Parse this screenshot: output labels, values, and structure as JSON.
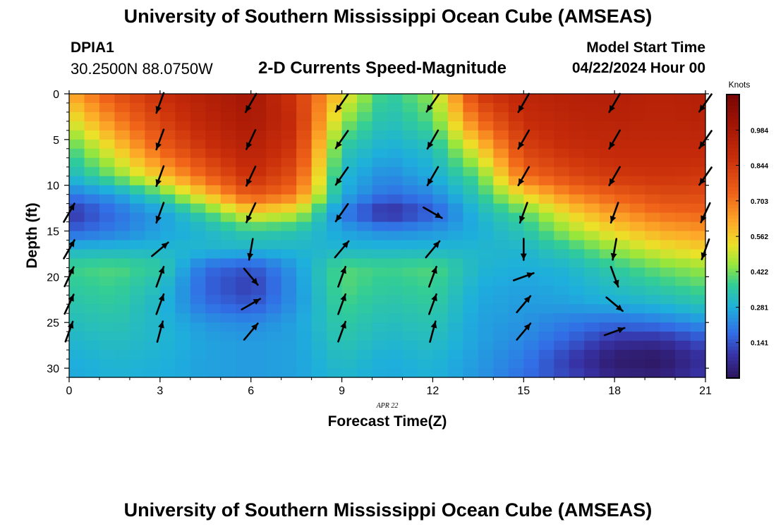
{
  "header": {
    "title": "University of Southern Mississippi Ocean Cube (AMSEAS)",
    "station_id": "DPIA1",
    "station_coords": "30.2500N  88.0750W",
    "subtitle": "2-D Currents Speed-Magnitude",
    "model_label": "Model Start Time",
    "model_time": "04/22/2024 Hour 00"
  },
  "footer": {
    "title": "University of Southern Mississippi Ocean Cube (AMSEAS)"
  },
  "chart_data": {
    "type": "heatmap",
    "xlabel": "Forecast Time(Z)",
    "ylabel": "Depth (ft)",
    "date_label": "APR 22",
    "colorbar_label": "Knots",
    "colorbar_ticks": [
      "0.984",
      "0.844",
      "0.703",
      "0.562",
      "0.422",
      "0.281",
      "0.141"
    ],
    "colorbar_tick_values": [
      0.984,
      0.844,
      0.703,
      0.562,
      0.422,
      0.281,
      0.141
    ],
    "colorbar_range": [
      0.0,
      1.125
    ],
    "x_ticks": [
      0,
      3,
      6,
      9,
      12,
      15,
      18,
      21
    ],
    "y_ticks": [
      0,
      5,
      10,
      15,
      20,
      25,
      30
    ],
    "xlim": [
      0,
      21
    ],
    "ylim": [
      0,
      31
    ],
    "y_inverted": true,
    "arrow_x": [
      0,
      3,
      6,
      9,
      12,
      15,
      18,
      21
    ],
    "arrow_depths": [
      1,
      5,
      9,
      13,
      17,
      20,
      23,
      26
    ],
    "arrow_dirs_deg": [
      [
        225,
        200,
        210,
        215,
        215,
        210,
        210,
        215
      ],
      [
        210,
        200,
        205,
        215,
        210,
        210,
        210,
        215
      ],
      [
        210,
        200,
        205,
        215,
        210,
        210,
        210,
        215
      ],
      [
        30,
        200,
        205,
        215,
        120,
        200,
        200,
        205
      ],
      [
        30,
        50,
        190,
        40,
        40,
        180,
        190,
        200
      ],
      [
        25,
        20,
        140,
        20,
        20,
        70,
        160,
        0
      ],
      [
        25,
        20,
        60,
        20,
        20,
        40,
        130,
        0
      ],
      [
        20,
        15,
        40,
        20,
        15,
        40,
        70,
        0
      ]
    ],
    "arrow_show": [
      [
        0,
        1,
        1,
        1,
        1,
        1,
        1,
        1
      ],
      [
        0,
        1,
        1,
        1,
        1,
        1,
        1,
        1
      ],
      [
        0,
        1,
        1,
        1,
        1,
        1,
        1,
        1
      ],
      [
        1,
        1,
        1,
        1,
        1,
        1,
        1,
        1
      ],
      [
        1,
        1,
        1,
        1,
        1,
        1,
        1,
        1
      ],
      [
        1,
        1,
        1,
        1,
        1,
        1,
        1,
        0
      ],
      [
        1,
        1,
        1,
        1,
        1,
        1,
        1,
        0
      ],
      [
        1,
        1,
        1,
        1,
        1,
        1,
        1,
        0
      ]
    ],
    "speed_depths": [
      0,
      3,
      6,
      9,
      11,
      13,
      15,
      17,
      19,
      21,
      23,
      25,
      27,
      29,
      31
    ],
    "speed_times": [
      0,
      1.5,
      3,
      4.5,
      6,
      7.5,
      9,
      10.5,
      12,
      13.5,
      15,
      16.5,
      18,
      19.5,
      21
    ],
    "speed_knots": [
      [
        0.62,
        0.78,
        0.88,
        0.95,
        1.0,
        0.85,
        0.55,
        0.35,
        0.45,
        0.85,
        0.92,
        0.94,
        0.95,
        0.93,
        0.95
      ],
      [
        0.5,
        0.68,
        0.82,
        0.92,
        0.98,
        0.88,
        0.45,
        0.32,
        0.4,
        0.72,
        0.88,
        0.92,
        0.93,
        0.92,
        0.93
      ],
      [
        0.38,
        0.55,
        0.74,
        0.86,
        0.94,
        0.85,
        0.35,
        0.28,
        0.32,
        0.55,
        0.82,
        0.88,
        0.9,
        0.9,
        0.9
      ],
      [
        0.3,
        0.42,
        0.58,
        0.74,
        0.88,
        0.78,
        0.3,
        0.22,
        0.28,
        0.4,
        0.72,
        0.8,
        0.85,
        0.86,
        0.85
      ],
      [
        0.2,
        0.25,
        0.38,
        0.58,
        0.78,
        0.7,
        0.28,
        0.18,
        0.22,
        0.35,
        0.55,
        0.68,
        0.75,
        0.8,
        0.8
      ],
      [
        0.08,
        0.18,
        0.25,
        0.38,
        0.55,
        0.5,
        0.2,
        0.06,
        0.15,
        0.3,
        0.4,
        0.55,
        0.65,
        0.72,
        0.74
      ],
      [
        0.16,
        0.2,
        0.26,
        0.3,
        0.36,
        0.34,
        0.26,
        0.22,
        0.24,
        0.28,
        0.34,
        0.46,
        0.55,
        0.62,
        0.65
      ],
      [
        0.3,
        0.3,
        0.3,
        0.3,
        0.3,
        0.3,
        0.3,
        0.3,
        0.3,
        0.3,
        0.3,
        0.36,
        0.45,
        0.52,
        0.56
      ],
      [
        0.38,
        0.4,
        0.36,
        0.18,
        0.14,
        0.25,
        0.4,
        0.38,
        0.4,
        0.3,
        0.28,
        0.3,
        0.36,
        0.42,
        0.46
      ],
      [
        0.36,
        0.38,
        0.32,
        0.16,
        0.1,
        0.24,
        0.4,
        0.36,
        0.38,
        0.28,
        0.26,
        0.28,
        0.32,
        0.36,
        0.4
      ],
      [
        0.34,
        0.36,
        0.3,
        0.18,
        0.14,
        0.24,
        0.38,
        0.34,
        0.36,
        0.27,
        0.25,
        0.26,
        0.28,
        0.3,
        0.34
      ],
      [
        0.32,
        0.34,
        0.3,
        0.24,
        0.22,
        0.26,
        0.36,
        0.32,
        0.34,
        0.26,
        0.24,
        0.2,
        0.18,
        0.2,
        0.24
      ],
      [
        0.3,
        0.32,
        0.3,
        0.26,
        0.25,
        0.26,
        0.34,
        0.3,
        0.32,
        0.26,
        0.22,
        0.16,
        0.08,
        0.07,
        0.14
      ],
      [
        0.28,
        0.3,
        0.29,
        0.26,
        0.25,
        0.26,
        0.32,
        0.28,
        0.3,
        0.25,
        0.2,
        0.1,
        0.02,
        0.01,
        0.08
      ],
      [
        0.27,
        0.29,
        0.28,
        0.26,
        0.25,
        0.26,
        0.3,
        0.27,
        0.29,
        0.24,
        0.18,
        0.12,
        0.05,
        0.04,
        0.1
      ]
    ]
  }
}
